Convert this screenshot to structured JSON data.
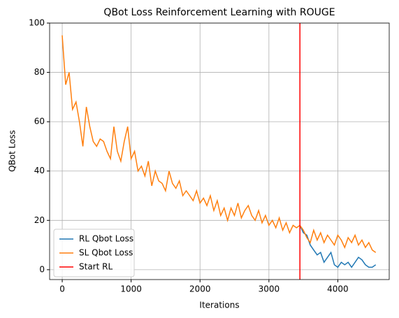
{
  "chart_data": {
    "type": "line",
    "title": "QBot Loss Reinforcement Learning with ROUGE",
    "x_label": "Iterations",
    "y_label": "QBot Loss",
    "x": [
      0,
      50,
      100,
      150,
      200,
      250,
      300,
      350,
      400,
      450,
      500,
      550,
      600,
      650,
      700,
      750,
      800,
      850,
      900,
      950,
      1000,
      1050,
      1100,
      1150,
      1200,
      1250,
      1300,
      1350,
      1400,
      1450,
      1500,
      1550,
      1600,
      1650,
      1700,
      1750,
      1800,
      1850,
      1900,
      1950,
      2000,
      2050,
      2100,
      2150,
      2200,
      2250,
      2300,
      2350,
      2400,
      2450,
      2500,
      2550,
      2600,
      2650,
      2700,
      2750,
      2800,
      2850,
      2900,
      2950,
      3000,
      3050,
      3100,
      3150,
      3200,
      3250,
      3300,
      3350,
      3400,
      3450,
      3500,
      3550,
      3600,
      3650,
      3700,
      3750,
      3800,
      3850,
      3900,
      3950,
      4000,
      4050,
      4100,
      4150,
      4200,
      4250,
      4300,
      4350,
      4400,
      4450,
      4500,
      4550
    ],
    "series": [
      {
        "name": "RL Qbot Loss",
        "color": "#1f77b4",
        "values": [
          null,
          null,
          null,
          null,
          null,
          null,
          null,
          null,
          null,
          null,
          null,
          null,
          null,
          null,
          null,
          null,
          null,
          null,
          null,
          null,
          null,
          null,
          null,
          null,
          null,
          null,
          null,
          null,
          null,
          null,
          null,
          null,
          null,
          null,
          null,
          null,
          null,
          null,
          null,
          null,
          null,
          null,
          null,
          null,
          null,
          null,
          null,
          null,
          null,
          null,
          null,
          null,
          null,
          null,
          null,
          null,
          null,
          null,
          null,
          null,
          null,
          null,
          null,
          null,
          null,
          null,
          null,
          null,
          null,
          18,
          15,
          14,
          10,
          8,
          6,
          7,
          3,
          5,
          7,
          2,
          1,
          3,
          2,
          3,
          1,
          3,
          5,
          4,
          2,
          1,
          1,
          2
        ]
      },
      {
        "name": "SL Qbot Loss",
        "color": "#ff7f0e",
        "values": [
          95,
          75,
          80,
          65,
          68,
          60,
          50,
          66,
          58,
          52,
          50,
          53,
          52,
          48,
          45,
          58,
          48,
          44,
          52,
          58,
          45,
          48,
          40,
          42,
          38,
          44,
          34,
          40,
          36,
          35,
          32,
          40,
          35,
          33,
          36,
          30,
          32,
          30,
          28,
          32,
          27,
          29,
          26,
          30,
          24,
          28,
          22,
          25,
          20,
          25,
          22,
          27,
          21,
          24,
          26,
          22,
          20,
          24,
          19,
          22,
          18,
          20,
          17,
          21,
          16,
          19,
          15,
          18,
          17,
          18,
          16,
          13,
          11,
          16,
          12,
          15,
          11,
          14,
          12,
          10,
          14,
          12,
          9,
          13,
          11,
          14,
          10,
          12,
          9,
          11,
          8,
          7
        ]
      }
    ],
    "markers": [
      {
        "name": "Start RL",
        "color": "#ff0000",
        "x": 3450
      }
    ],
    "xlim": [
      -183,
      4746
    ],
    "ylim": [
      -4,
      100
    ],
    "xticks": [
      0,
      1000,
      2000,
      3000,
      4000
    ],
    "yticks": [
      0,
      20,
      40,
      60,
      80,
      100
    ],
    "grid": true,
    "legend": "lower left"
  }
}
